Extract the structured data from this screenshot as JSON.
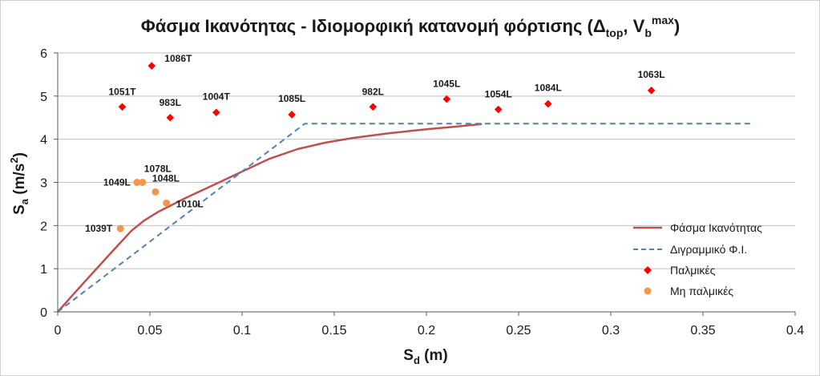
{
  "chart_data": {
    "type": "scatter",
    "title": {
      "main": "Φάσμα Ικανότητας - Ιδιομορφική κατανομή φόρτισης (Δ",
      "sub1": "top",
      "mid": ", V",
      "sub2": "b",
      "sup2": "max",
      "end": ")"
    },
    "xlabel": {
      "main": "S",
      "sub": "d",
      "rest": " (m)"
    },
    "ylabel": {
      "main": "S",
      "sub": "a",
      "rest": " (m/s",
      "sup": "2",
      "end": ")"
    },
    "xlim": [
      0,
      0.4
    ],
    "ylim": [
      0,
      6
    ],
    "xticks": [
      0,
      0.05,
      0.1,
      0.15,
      0.2,
      0.25,
      0.3,
      0.35,
      0.4
    ],
    "xtick_labels": [
      "0",
      "0.05",
      "0.1",
      "0.15",
      "0.2",
      "0.25",
      "0.3",
      "0.35",
      "0.4"
    ],
    "yticks": [
      0,
      1,
      2,
      3,
      4,
      5,
      6
    ],
    "ytick_labels": [
      "0",
      "1",
      "2",
      "3",
      "4",
      "5",
      "6"
    ],
    "grid": "horizontal",
    "legend_position": "bottom-right",
    "colors": {
      "capacity": "#C0504D",
      "bilinear": "#4F81BD",
      "palmikes": "#FF0000",
      "non_palmikes": "#F79646"
    },
    "series": [
      {
        "name": "Φάσμα Ικανότητας",
        "kind": "line",
        "x": [
          0,
          0.01,
          0.02,
          0.03,
          0.04,
          0.047,
          0.055,
          0.07,
          0.085,
          0.1,
          0.115,
          0.13,
          0.145,
          0.16,
          0.18,
          0.2,
          0.215,
          0.23
        ],
        "y": [
          0,
          0.48,
          0.95,
          1.42,
          1.88,
          2.12,
          2.33,
          2.65,
          2.95,
          3.25,
          3.55,
          3.77,
          3.92,
          4.03,
          4.14,
          4.23,
          4.29,
          4.35
        ]
      },
      {
        "name": "Διγραμμικό Φ.Ι.",
        "kind": "dashed-line",
        "x": [
          0,
          0.134,
          0.377
        ],
        "y": [
          0,
          4.36,
          4.36
        ]
      },
      {
        "name": "Παλμικές",
        "kind": "scatter-diamond",
        "points": [
          {
            "label": "1086T",
            "x": 0.051,
            "y": 5.7
          },
          {
            "label": "1051T",
            "x": 0.035,
            "y": 4.75
          },
          {
            "label": "983L",
            "x": 0.061,
            "y": 4.5
          },
          {
            "label": "1004T",
            "x": 0.086,
            "y": 4.62
          },
          {
            "label": "1085L",
            "x": 0.127,
            "y": 4.57
          },
          {
            "label": "982L",
            "x": 0.171,
            "y": 4.75
          },
          {
            "label": "1045L",
            "x": 0.211,
            "y": 4.93
          },
          {
            "label": "1054L",
            "x": 0.239,
            "y": 4.69
          },
          {
            "label": "1084L",
            "x": 0.266,
            "y": 4.82
          },
          {
            "label": "1063L",
            "x": 0.322,
            "y": 5.13
          }
        ]
      },
      {
        "name": "Μη παλμικές",
        "kind": "scatter-circle",
        "points": [
          {
            "label": "1078L",
            "x": 0.046,
            "y": 3.0
          },
          {
            "label": "1049L",
            "x": 0.043,
            "y": 3.0
          },
          {
            "label": "1048L",
            "x": 0.053,
            "y": 2.78
          },
          {
            "label": "1010L",
            "x": 0.059,
            "y": 2.52
          },
          {
            "label": "1039T",
            "x": 0.034,
            "y": 1.93
          }
        ]
      }
    ],
    "legend": [
      {
        "name": "Φάσμα Ικανότητας",
        "marker": "line"
      },
      {
        "name": "Διγραμμικό Φ.Ι.",
        "marker": "dashed"
      },
      {
        "name": "Παλμικές",
        "marker": "diamond"
      },
      {
        "name": "Μη παλμικές",
        "marker": "circle"
      }
    ]
  }
}
